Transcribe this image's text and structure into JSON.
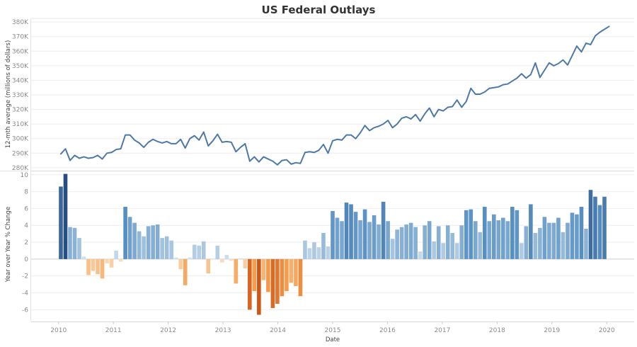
{
  "chart_data": {
    "type": "line+bar",
    "title": "US Federal Outlays",
    "xlabel": "Date",
    "x_ticks": [
      "2010",
      "2011",
      "2012",
      "2013",
      "2014",
      "2015",
      "2016",
      "2017",
      "2018",
      "2019",
      "2020"
    ],
    "x_range": [
      2009.5,
      2020.5
    ],
    "top_panel": {
      "type": "line",
      "ylabel": "12-mth average (millions of dollars)",
      "ylim": [
        278,
        382
      ],
      "y_ticks": [
        280,
        290,
        300,
        310,
        320,
        330,
        340,
        350,
        360,
        370,
        380
      ],
      "y_tick_labels": [
        "280K",
        "290K",
        "300K",
        "310K",
        "320K",
        "330K",
        "340K",
        "350K",
        "360K",
        "370K",
        "380K"
      ],
      "line_color": "#4e79a7",
      "values": [
        289.5,
        293,
        285,
        288.5,
        286.5,
        287.5,
        286.5,
        287,
        288.5,
        286,
        290,
        290.5,
        292.5,
        293,
        302.5,
        302.5,
        299,
        297,
        294,
        297.5,
        299.5,
        298,
        297,
        298,
        296.5,
        296.5,
        299.5,
        293.5,
        300,
        302,
        299,
        304.5,
        295,
        298.5,
        303,
        297.5,
        298,
        297.5,
        291,
        294,
        296.5,
        284.5,
        287.5,
        284,
        287.5,
        286,
        284.5,
        282,
        285,
        285.5,
        282.5,
        283.5,
        283,
        290.5,
        291,
        290.5,
        292,
        296,
        290,
        298.5,
        299.5,
        299,
        302.5,
        302.5,
        300,
        304,
        309,
        305.5,
        307.5,
        308.5,
        310,
        312.5,
        307.5,
        310,
        314,
        315,
        313.5,
        316.5,
        312,
        317,
        321,
        315,
        320,
        319,
        321.5,
        322,
        326.5,
        321.5,
        325.5,
        334.5,
        330.5,
        330.5,
        332,
        334.5,
        335,
        335.5,
        337,
        337.5,
        339.5,
        341.5,
        344.5,
        341.5,
        344,
        352,
        342,
        347,
        352,
        350,
        351.5,
        354,
        350.5,
        357,
        363.5,
        359.5,
        365.5,
        364.5,
        370.5,
        373,
        375,
        377
      ]
    },
    "bottom_panel": {
      "type": "bar",
      "ylabel": "Year over Year % Change",
      "ylim": [
        -7.4,
        10.4
      ],
      "y_ticks": [
        -6,
        -4,
        -2,
        0,
        2,
        4,
        6,
        8,
        10
      ],
      "y_tick_labels": [
        "-6",
        "-4",
        "-2",
        "0",
        "2",
        "4",
        "6",
        "8",
        "10"
      ],
      "color_scale": "diverging orange (negative) to blue (positive), intensity by magnitude",
      "values": [
        8.6,
        10.1,
        3.8,
        3.7,
        2.5,
        0.3,
        -1.9,
        -1.4,
        -1.8,
        -2.3,
        -0.5,
        -1.0,
        1.0,
        -0.3,
        6.2,
        5.0,
        4.3,
        3.3,
        2.7,
        3.9,
        4.0,
        4.1,
        2.5,
        2.7,
        2.2,
        0.2,
        -1.2,
        -3.1,
        0.2,
        1.7,
        1.6,
        2.1,
        -1.7,
        0.0,
        1.6,
        -0.4,
        0.5,
        -0.2,
        -2.9,
        0.1,
        -1.1,
        -6.0,
        -3.8,
        -6.6,
        -2.5,
        -3.9,
        -5.8,
        -5.3,
        -4.4,
        -3.8,
        -2.8,
        -3.2,
        -4.4,
        2.2,
        1.3,
        2.0,
        1.4,
        3.1,
        1.5,
        5.7,
        4.9,
        4.5,
        6.7,
        6.5,
        5.6,
        4.6,
        5.9,
        4.4,
        5.2,
        4.1,
        6.8,
        4.5,
        2.4,
        3.5,
        3.8,
        4.1,
        4.3,
        3.8,
        0.9,
        4.0,
        4.5,
        2.1,
        3.9,
        1.9,
        4.0,
        3.1,
        1.9,
        4.0,
        5.8,
        5.9,
        4.5,
        3.2,
        6.2,
        4.5,
        5.3,
        4.6,
        4.9,
        4.5,
        6.2,
        5.8,
        1.9,
        3.9,
        6.5,
        3.1,
        3.7,
        5.0,
        4.3,
        4.3,
        4.9,
        3.2,
        4.3,
        5.5,
        5.3,
        6.2,
        3.6,
        8.2,
        7.4,
        6.4,
        7.4
      ]
    }
  }
}
